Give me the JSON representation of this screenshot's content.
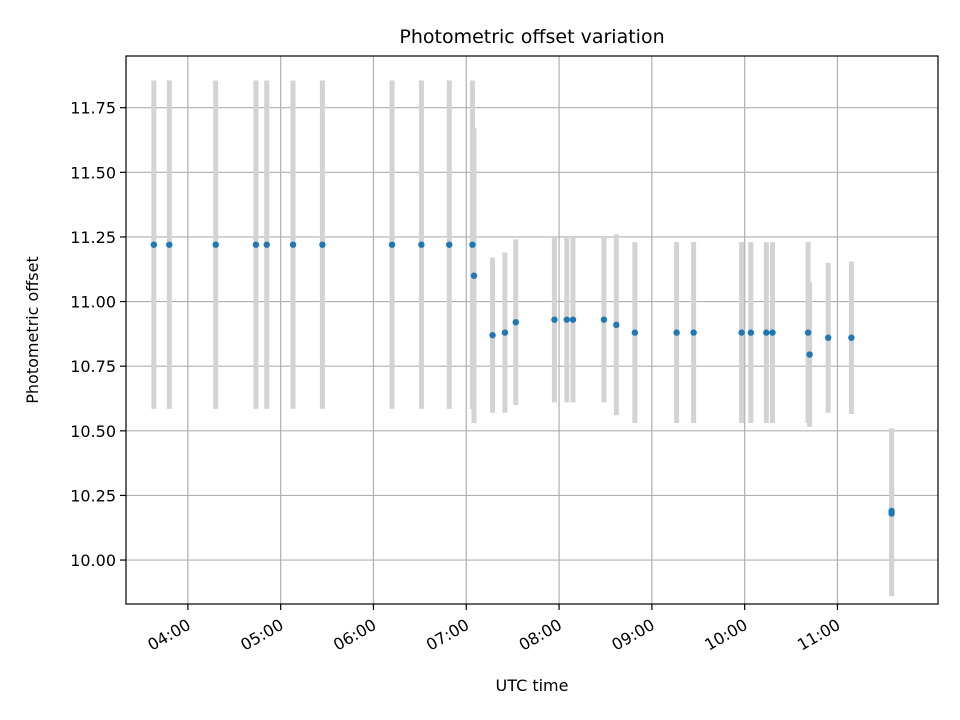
{
  "chart_data": {
    "type": "scatter",
    "title": "Photometric offset variation",
    "xlabel": "UTC time",
    "ylabel": "Photometric offset",
    "grid": true,
    "xlim": [
      "03:20",
      "12:05"
    ],
    "ylim": [
      9.83,
      11.95
    ],
    "x_ticks": [
      "04:00",
      "05:00",
      "06:00",
      "07:00",
      "08:00",
      "09:00",
      "10:00",
      "11:00"
    ],
    "y_ticks": [
      "10.00",
      "10.25",
      "10.50",
      "10.75",
      "11.00",
      "11.25",
      "11.50",
      "11.75"
    ],
    "marker_color": "#1f77b4",
    "errorbar_color": "#d3d3d3",
    "points": [
      {
        "x": "03:38",
        "y": 11.22,
        "err": 0.635
      },
      {
        "x": "03:48",
        "y": 11.22,
        "err": 0.635
      },
      {
        "x": "04:18",
        "y": 11.22,
        "err": 0.635
      },
      {
        "x": "04:44",
        "y": 11.22,
        "err": 0.635
      },
      {
        "x": "04:51",
        "y": 11.22,
        "err": 0.635
      },
      {
        "x": "05:08",
        "y": 11.22,
        "err": 0.635
      },
      {
        "x": "05:27",
        "y": 11.22,
        "err": 0.635
      },
      {
        "x": "06:12",
        "y": 11.22,
        "err": 0.635
      },
      {
        "x": "06:31",
        "y": 11.22,
        "err": 0.635
      },
      {
        "x": "06:49",
        "y": 11.22,
        "err": 0.635
      },
      {
        "x": "07:04",
        "y": 11.22,
        "err": 0.635
      },
      {
        "x": "07:05",
        "y": 11.1,
        "err": 0.57
      },
      {
        "x": "07:17",
        "y": 10.87,
        "err": 0.3
      },
      {
        "x": "07:25",
        "y": 10.88,
        "err": 0.31
      },
      {
        "x": "07:32",
        "y": 10.92,
        "err": 0.32
      },
      {
        "x": "07:57",
        "y": 10.93,
        "err": 0.32
      },
      {
        "x": "08:05",
        "y": 10.93,
        "err": 0.32
      },
      {
        "x": "08:09",
        "y": 10.93,
        "err": 0.32
      },
      {
        "x": "08:29",
        "y": 10.93,
        "err": 0.32
      },
      {
        "x": "08:37",
        "y": 10.91,
        "err": 0.35
      },
      {
        "x": "08:49",
        "y": 10.88,
        "err": 0.35
      },
      {
        "x": "09:16",
        "y": 10.88,
        "err": 0.35
      },
      {
        "x": "09:27",
        "y": 10.88,
        "err": 0.35
      },
      {
        "x": "09:58",
        "y": 10.88,
        "err": 0.35
      },
      {
        "x": "10:04",
        "y": 10.88,
        "err": 0.35
      },
      {
        "x": "10:14",
        "y": 10.88,
        "err": 0.35
      },
      {
        "x": "10:18",
        "y": 10.88,
        "err": 0.35
      },
      {
        "x": "10:41",
        "y": 10.88,
        "err": 0.35
      },
      {
        "x": "10:42",
        "y": 10.795,
        "err": 0.28
      },
      {
        "x": "10:54",
        "y": 10.86,
        "err": 0.29
      },
      {
        "x": "11:09",
        "y": 10.86,
        "err": 0.295
      },
      {
        "x": "11:35",
        "y": 10.18,
        "err": 0.32
      },
      {
        "x": "11:35",
        "y": 10.19,
        "err": 0.32
      }
    ]
  }
}
